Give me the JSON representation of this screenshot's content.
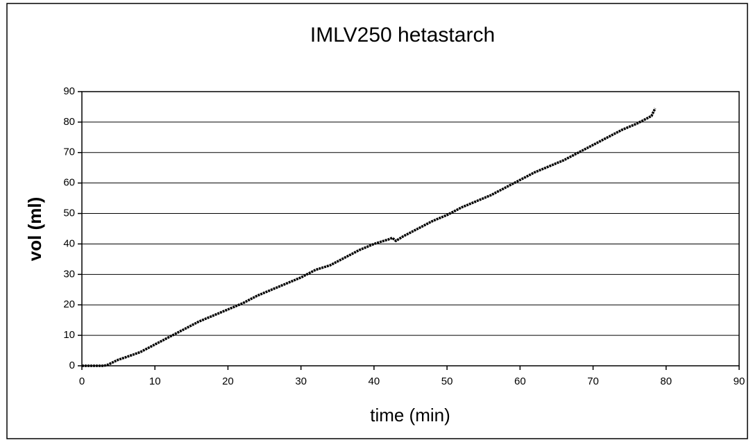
{
  "chart_data": {
    "type": "line",
    "title": "IMLV250 hetastarch",
    "x_label": "time (min)",
    "y_label": "vol (ml)",
    "x": [
      0,
      1,
      2,
      3,
      3.5,
      5,
      6,
      8,
      10,
      12,
      14,
      16,
      18,
      20,
      22,
      24,
      26,
      28,
      30,
      32,
      34,
      36,
      38,
      40,
      42,
      42.5,
      43,
      44,
      46,
      48,
      50,
      52,
      54,
      56,
      58,
      60,
      62,
      64,
      66,
      68,
      70,
      72,
      74,
      76,
      78,
      78.5
    ],
    "series": [
      {
        "name": "vol",
        "color": "#000000",
        "values": [
          0,
          0,
          0,
          0,
          0.3,
          2,
          2.8,
          4.5,
          7,
          9.5,
          12,
          14.5,
          16.5,
          18.5,
          20.5,
          23,
          25,
          27,
          29,
          31.5,
          33,
          35.5,
          38,
          40,
          41.5,
          42,
          41,
          42.5,
          45,
          47.5,
          49.5,
          52,
          54,
          56,
          58.5,
          61,
          63.5,
          65.5,
          67.5,
          70,
          72.5,
          75,
          77.5,
          79.5,
          82,
          84.5
        ]
      }
    ],
    "xlim": [
      0,
      90
    ],
    "xticks": [
      0,
      10,
      20,
      30,
      40,
      50,
      60,
      70,
      80,
      90
    ],
    "ylim": [
      0,
      90
    ],
    "yticks": [
      0,
      10,
      20,
      30,
      40,
      50,
      60,
      70,
      80,
      90
    ],
    "grid": true
  }
}
